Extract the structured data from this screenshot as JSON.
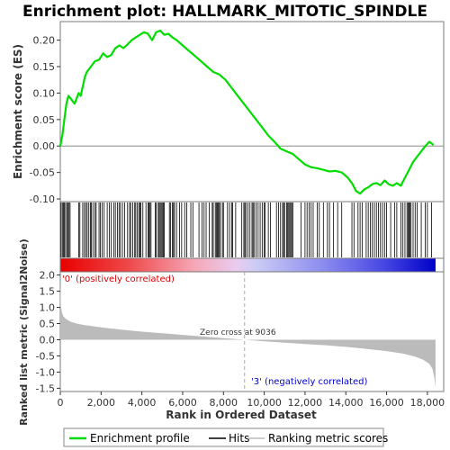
{
  "chart_data": [
    {
      "type": "line",
      "title": "Enrichment plot: HALLMARK_MITOTIC_SPINDLE",
      "ylabel": "Enrichment score (ES)",
      "ylim": [
        -0.105,
        0.235
      ],
      "xlim": [
        0,
        18800
      ],
      "y_ticks": [
        "0.20",
        "0.15",
        "0.10",
        "0.05",
        "0.00",
        "-0.05",
        "-0.10"
      ],
      "y_tick_values": [
        0.2,
        0.15,
        0.1,
        0.05,
        0.0,
        -0.05,
        -0.1
      ],
      "series": [
        {
          "name": "Enrichment profile",
          "color": "#00dd00",
          "x": [
            0,
            100,
            200,
            300,
            400,
            500,
            700,
            900,
            1000,
            1200,
            1300,
            1500,
            1700,
            1900,
            2100,
            2300,
            2500,
            2700,
            2900,
            3100,
            3300,
            3500,
            3700,
            3900,
            4100,
            4300,
            4500,
            4700,
            4900,
            5100,
            5300,
            5500,
            5700,
            6000,
            6300,
            6600,
            6900,
            7200,
            7500,
            7800,
            8100,
            8400,
            8700,
            9000,
            9300,
            9600,
            9900,
            10200,
            10500,
            10800,
            11100,
            11400,
            11700,
            12000,
            12300,
            12600,
            12900,
            13200,
            13500,
            13800,
            14100,
            14300,
            14500,
            14700,
            14900,
            15100,
            15300,
            15500,
            15700,
            15900,
            16100,
            16300,
            16500,
            16700,
            16900,
            17100,
            17300,
            17500,
            17700,
            17900,
            18100,
            18300
          ],
          "values": [
            0.0,
            0.02,
            0.05,
            0.08,
            0.095,
            0.09,
            0.08,
            0.1,
            0.095,
            0.13,
            0.14,
            0.15,
            0.16,
            0.163,
            0.175,
            0.168,
            0.172,
            0.185,
            0.19,
            0.185,
            0.192,
            0.2,
            0.205,
            0.21,
            0.215,
            0.212,
            0.2,
            0.215,
            0.218,
            0.21,
            0.212,
            0.205,
            0.2,
            0.19,
            0.18,
            0.17,
            0.16,
            0.15,
            0.14,
            0.135,
            0.125,
            0.11,
            0.095,
            0.08,
            0.065,
            0.05,
            0.035,
            0.02,
            0.008,
            -0.005,
            -0.01,
            -0.015,
            -0.025,
            -0.035,
            -0.04,
            -0.042,
            -0.045,
            -0.048,
            -0.047,
            -0.05,
            -0.06,
            -0.07,
            -0.085,
            -0.09,
            -0.082,
            -0.078,
            -0.072,
            -0.07,
            -0.074,
            -0.065,
            -0.072,
            -0.075,
            -0.07,
            -0.075,
            -0.06,
            -0.045,
            -0.03,
            -0.02,
            -0.01,
            0.0,
            0.008,
            0.002
          ]
        }
      ]
    },
    {
      "type": "heatmap",
      "series": [
        {
          "name": "Hits",
          "x": [
            40,
            100,
            150,
            200,
            260,
            320,
            380,
            430,
            480,
            900,
            960,
            1100,
            1180,
            1250,
            1320,
            1400,
            1480,
            1520,
            1600,
            1700,
            1760,
            1900,
            1960,
            2050,
            2150,
            2300,
            2400,
            2500,
            2620,
            2700,
            2800,
            2880,
            2950,
            3050,
            3150,
            3300,
            3400,
            3450,
            3550,
            3650,
            3700,
            3780,
            3850,
            3900,
            3950,
            4050,
            4200,
            4300,
            4350,
            4400,
            4450,
            4650,
            4700,
            4800,
            4850,
            4900,
            4950,
            5000,
            5050,
            5100,
            5350,
            5400,
            5500,
            5550,
            5600,
            5700,
            5850,
            5950,
            6100,
            6200,
            6400,
            6500,
            6800,
            6950,
            7050,
            7150,
            7300,
            7450,
            7500,
            7600,
            7650,
            7700,
            7750,
            7800,
            7850,
            7950,
            8000,
            8200,
            8300,
            8400,
            8450,
            8600,
            8900,
            9000,
            9050,
            9100,
            9200,
            9300,
            9400,
            9450,
            9500,
            9600,
            9700,
            9800,
            9900,
            10000,
            10050,
            10200,
            10300,
            10600,
            10700,
            10800,
            10900,
            10950,
            11000,
            11100,
            11150,
            11200,
            11250,
            11300,
            11350,
            11400,
            11800,
            12000,
            12100,
            12200,
            12300,
            12400,
            12600,
            12700,
            12900,
            13100,
            13200,
            13400,
            13600,
            13800,
            14300,
            14400,
            14600,
            14700,
            14800,
            15000,
            15100,
            15200,
            15300,
            15400,
            15500,
            15600,
            15700,
            15800,
            15900,
            16000,
            16200,
            16400,
            16500,
            16700,
            16800,
            16900,
            17000,
            17050,
            17100,
            17150,
            17200,
            17300,
            17400,
            17500,
            17700,
            17900,
            18000,
            18200
          ]
        }
      ]
    },
    {
      "type": "area",
      "ylabel": "Ranked list metric (Signal2Noise)",
      "xlabel": "Rank in Ordered Dataset",
      "ylim": [
        -1.6,
        2.1
      ],
      "xlim": [
        0,
        18800
      ],
      "y_ticks": [
        "2.0",
        "1.5",
        "1.0",
        "0.5",
        "0.0",
        "-0.5",
        "-1.0",
        "-1.5"
      ],
      "y_tick_values": [
        2.0,
        1.5,
        1.0,
        0.5,
        0.0,
        -0.5,
        -1.0,
        -1.5
      ],
      "x_ticks": [
        "0",
        "2,000",
        "4,000",
        "6,000",
        "8,000",
        "10,000",
        "12,000",
        "14,000",
        "16,000",
        "18,000"
      ],
      "x_tick_values": [
        0,
        2000,
        4000,
        6000,
        8000,
        10000,
        12000,
        14000,
        16000,
        18000
      ],
      "series": [
        {
          "name": "Ranking metric scores",
          "color": "#bbbbbb",
          "x": [
            0,
            30,
            80,
            150,
            300,
            500,
            800,
            1200,
            2000,
            3000,
            4000,
            5000,
            6000,
            7000,
            8000,
            9036,
            10000,
            11000,
            12000,
            13000,
            14000,
            15000,
            16000,
            16800,
            17400,
            17800,
            18100,
            18250,
            18350,
            18400
          ],
          "values": [
            1.9,
            1.05,
            0.85,
            0.72,
            0.63,
            0.56,
            0.5,
            0.45,
            0.38,
            0.31,
            0.25,
            0.2,
            0.15,
            0.1,
            0.05,
            0.0,
            -0.05,
            -0.09,
            -0.13,
            -0.17,
            -0.22,
            -0.28,
            -0.35,
            -0.43,
            -0.52,
            -0.62,
            -0.75,
            -0.9,
            -1.2,
            -1.48
          ]
        }
      ],
      "annotations": {
        "positive_label": "'0' (positively correlated)",
        "negative_label": "'3' (negatively correlated)",
        "zero_cross_label": "Zero cross at 9036",
        "zero_cross_x": 9036
      }
    }
  ],
  "legend": {
    "items": [
      {
        "label": "Enrichment profile",
        "color": "#00dd00"
      },
      {
        "label": "Hits",
        "color": "#000000"
      },
      {
        "label": "Ranking metric scores",
        "color": "#bbbbbb"
      }
    ]
  }
}
